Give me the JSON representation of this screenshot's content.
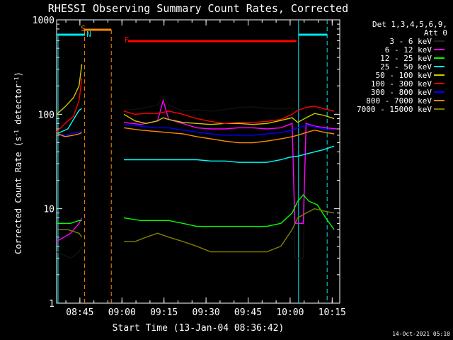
{
  "chart_data": {
    "type": "line",
    "title": "RHESSI Observing Summary Count Rates, Corrected",
    "xlabel": "Start Time (13-Jan-04 08:36:42)",
    "ylabel_main": "Corrected Count Rate (s",
    "ylabel_exp1": "-1",
    "ylabel_mid": " detector",
    "ylabel_exp2": "-1",
    "ylabel_end": ")",
    "y_scale": "log",
    "ylim": [
      1,
      1000
    ],
    "xlim_minutes_after_0836": [
      0,
      101
    ],
    "x_ticks": [
      {
        "label": "08:45",
        "minute": 8.3
      },
      {
        "label": "09:00",
        "minute": 23.3
      },
      {
        "label": "09:15",
        "minute": 38.3
      },
      {
        "label": "09:30",
        "minute": 53.3
      },
      {
        "label": "09:45",
        "minute": 68.3
      },
      {
        "label": "10:00",
        "minute": 83.3
      },
      {
        "label": "10:15",
        "minute": 98.3
      }
    ],
    "y_ticks": [
      {
        "label": "1",
        "value": 1
      },
      {
        "label": "10",
        "value": 10
      },
      {
        "label": "100",
        "value": 100
      },
      {
        "label": "1000",
        "value": 1000
      }
    ],
    "legend_header": [
      "Det 1,3,4,5,6,9,",
      "Att 0"
    ],
    "legend_position": "top-right, outside plot",
    "footer_timestamp": "14-Oct-2021 05:10",
    "markers": [
      {
        "label": "S",
        "color": "#ff8800",
        "x": 9.5
      },
      {
        "label": "N",
        "color": "#00e5ee",
        "x": 11.5
      },
      {
        "label": "F",
        "color": "#ff0000",
        "x": 25
      }
    ],
    "series": [
      {
        "name": "3 - 6 keV",
        "color": "#000000",
        "points": [
          [
            0,
            3.5
          ],
          [
            5,
            3.0
          ],
          [
            8,
            3.5
          ],
          [
            9,
            4.0
          ],
          [
            24,
            110
          ],
          [
            30,
            115
          ],
          [
            36,
            125
          ],
          [
            38,
            155
          ],
          [
            40,
            125
          ],
          [
            45,
            108
          ],
          [
            50,
            112
          ],
          [
            55,
            108
          ],
          [
            60,
            112
          ],
          [
            65,
            118
          ],
          [
            70,
            120
          ],
          [
            75,
            115
          ],
          [
            80,
            114
          ],
          [
            84,
            116
          ],
          [
            85,
            3.0
          ],
          [
            88,
            3.0
          ],
          [
            89,
            120
          ],
          [
            92,
            118
          ],
          [
            96,
            108
          ],
          [
            100,
            105
          ]
        ]
      },
      {
        "name": "6 - 12 keV",
        "color": "#ff00ff",
        "points": [
          [
            0,
            4.5
          ],
          [
            5,
            5.5
          ],
          [
            8,
            7.0
          ],
          [
            9,
            8.0
          ],
          [
            24,
            82
          ],
          [
            30,
            78
          ],
          [
            36,
            85
          ],
          [
            38,
            140
          ],
          [
            40,
            88
          ],
          [
            45,
            80
          ],
          [
            50,
            72
          ],
          [
            55,
            70
          ],
          [
            60,
            70
          ],
          [
            65,
            72
          ],
          [
            70,
            72
          ],
          [
            75,
            70
          ],
          [
            80,
            72
          ],
          [
            84,
            80
          ],
          [
            85,
            7.0
          ],
          [
            88,
            7.0
          ],
          [
            89,
            80
          ],
          [
            92,
            75
          ],
          [
            96,
            72
          ],
          [
            100,
            70
          ]
        ]
      },
      {
        "name": "12 - 25 keV",
        "color": "#00ff00",
        "points": [
          [
            0,
            7.0
          ],
          [
            5,
            7.0
          ],
          [
            8,
            7.5
          ],
          [
            9,
            7.5
          ],
          [
            24,
            8.0
          ],
          [
            30,
            7.5
          ],
          [
            36,
            7.5
          ],
          [
            40,
            7.5
          ],
          [
            45,
            7.0
          ],
          [
            50,
            6.5
          ],
          [
            55,
            6.5
          ],
          [
            60,
            6.5
          ],
          [
            65,
            6.5
          ],
          [
            70,
            6.5
          ],
          [
            75,
            6.5
          ],
          [
            80,
            7.0
          ],
          [
            84,
            9.0
          ],
          [
            86,
            12
          ],
          [
            88,
            14
          ],
          [
            90,
            12
          ],
          [
            93,
            11
          ],
          [
            96,
            8.0
          ],
          [
            99,
            6.0
          ]
        ]
      },
      {
        "name": "25 - 50 keV",
        "color": "#00ffff",
        "points": [
          [
            0,
            62
          ],
          [
            4,
            70
          ],
          [
            8,
            110
          ],
          [
            9,
            115
          ],
          [
            24,
            33
          ],
          [
            30,
            33
          ],
          [
            35,
            33
          ],
          [
            40,
            33
          ],
          [
            45,
            33
          ],
          [
            50,
            33
          ],
          [
            55,
            32
          ],
          [
            60,
            32
          ],
          [
            65,
            31
          ],
          [
            70,
            31
          ],
          [
            75,
            31
          ],
          [
            80,
            33
          ],
          [
            83,
            35
          ],
          [
            86,
            36
          ],
          [
            89,
            38
          ],
          [
            92,
            40
          ],
          [
            95,
            42
          ],
          [
            99,
            46
          ]
        ]
      },
      {
        "name": "50 - 100 keV",
        "color": "#cccc00",
        "points": [
          [
            0,
            100
          ],
          [
            3,
            120
          ],
          [
            6,
            150
          ],
          [
            8,
            200
          ],
          [
            9,
            340
          ],
          [
            24,
            100
          ],
          [
            28,
            85
          ],
          [
            32,
            80
          ],
          [
            36,
            85
          ],
          [
            38,
            92
          ],
          [
            40,
            88
          ],
          [
            45,
            82
          ],
          [
            50,
            80
          ],
          [
            55,
            78
          ],
          [
            60,
            80
          ],
          [
            65,
            80
          ],
          [
            70,
            78
          ],
          [
            75,
            80
          ],
          [
            80,
            86
          ],
          [
            84,
            92
          ],
          [
            86,
            82
          ],
          [
            89,
            92
          ],
          [
            92,
            102
          ],
          [
            95,
            98
          ],
          [
            99,
            90
          ]
        ]
      },
      {
        "name": "100 - 300 keV",
        "color": "#ff0000",
        "points": [
          [
            0,
            65
          ],
          [
            3,
            80
          ],
          [
            6,
            95
          ],
          [
            8,
            140
          ],
          [
            9,
            240
          ],
          [
            24,
            108
          ],
          [
            28,
            100
          ],
          [
            32,
            102
          ],
          [
            36,
            102
          ],
          [
            40,
            108
          ],
          [
            45,
            100
          ],
          [
            50,
            90
          ],
          [
            55,
            84
          ],
          [
            60,
            80
          ],
          [
            65,
            82
          ],
          [
            70,
            82
          ],
          [
            75,
            84
          ],
          [
            80,
            88
          ],
          [
            84,
            100
          ],
          [
            86,
            110
          ],
          [
            89,
            118
          ],
          [
            92,
            122
          ],
          [
            95,
            115
          ],
          [
            99,
            108
          ]
        ]
      },
      {
        "name": "300 - 800 keV",
        "color": "#0000ff",
        "points": [
          [
            0,
            62
          ],
          [
            3,
            60
          ],
          [
            6,
            63
          ],
          [
            8,
            65
          ],
          [
            9,
            66
          ],
          [
            24,
            78
          ],
          [
            30,
            75
          ],
          [
            35,
            72
          ],
          [
            40,
            72
          ],
          [
            45,
            68
          ],
          [
            50,
            65
          ],
          [
            55,
            62
          ],
          [
            60,
            60
          ],
          [
            65,
            60
          ],
          [
            70,
            60
          ],
          [
            75,
            62
          ],
          [
            80,
            64
          ],
          [
            84,
            68
          ],
          [
            86,
            72
          ],
          [
            89,
            76
          ],
          [
            92,
            74
          ],
          [
            95,
            70
          ],
          [
            99,
            68
          ]
        ]
      },
      {
        "name": "800 - 7000 keV",
        "color": "#ff8800",
        "points": [
          [
            0,
            63
          ],
          [
            3,
            58
          ],
          [
            6,
            60
          ],
          [
            8,
            62
          ],
          [
            9,
            64
          ],
          [
            24,
            72
          ],
          [
            30,
            68
          ],
          [
            35,
            66
          ],
          [
            40,
            64
          ],
          [
            45,
            62
          ],
          [
            50,
            58
          ],
          [
            55,
            55
          ],
          [
            60,
            52
          ],
          [
            65,
            50
          ],
          [
            70,
            50
          ],
          [
            75,
            52
          ],
          [
            80,
            55
          ],
          [
            84,
            58
          ],
          [
            86,
            60
          ],
          [
            89,
            64
          ],
          [
            92,
            68
          ],
          [
            95,
            65
          ],
          [
            99,
            62
          ]
        ]
      },
      {
        "name": "7000 - 15000 keV",
        "color": "#808000",
        "points": [
          [
            0,
            6.0
          ],
          [
            4,
            6.0
          ],
          [
            8,
            5.5
          ],
          [
            9,
            5.0
          ],
          [
            24,
            4.5
          ],
          [
            28,
            4.5
          ],
          [
            32,
            5.0
          ],
          [
            36,
            5.5
          ],
          [
            40,
            5.0
          ],
          [
            45,
            4.5
          ],
          [
            50,
            4.0
          ],
          [
            55,
            3.5
          ],
          [
            60,
            3.5
          ],
          [
            65,
            3.5
          ],
          [
            70,
            3.5
          ],
          [
            75,
            3.5
          ],
          [
            80,
            4.0
          ],
          [
            84,
            6.0
          ],
          [
            86,
            8.0
          ],
          [
            89,
            9.0
          ],
          [
            92,
            10
          ],
          [
            95,
            9.5
          ],
          [
            99,
            9.0
          ]
        ]
      }
    ]
  }
}
